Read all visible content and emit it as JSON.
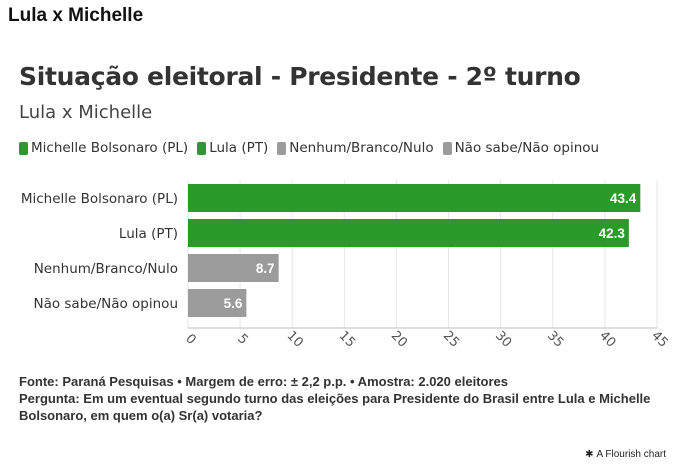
{
  "page_header": "Lula x Michelle",
  "flourish_credit": "A Flourish chart",
  "footer": {
    "source": "Fonte: Paraná Pesquisas • Margem de erro: ± 2,2 p.p. • Amostra: 2.020 eleitores",
    "question": "Pergunta: Em um eventual segundo turno das eleições para Presidente do Brasil entre Lula e Michelle Bolsonaro, em quem o(a) Sr(a) votaria?"
  },
  "legend": [
    {
      "label": "Michelle Bolsonaro (PL)",
      "color": "#2a9a2a"
    },
    {
      "label": "Lula (PT)",
      "color": "#2a9a2a"
    },
    {
      "label": "Nenhum/Branco/Nulo",
      "color": "#9b9b9b"
    },
    {
      "label": "Não sabe/Não opinou",
      "color": "#9b9b9b"
    }
  ],
  "chart_data": {
    "type": "bar",
    "orientation": "horizontal",
    "title": "Situação eleitoral - Presidente - 2º turno",
    "subtitle": "Lula x Michelle",
    "categories": [
      "Michelle Bolsonaro (PL)",
      "Lula (PT)",
      "Nenhum/Branco/Nulo",
      "Não sabe/Não opinou"
    ],
    "values": [
      43.4,
      42.3,
      8.7,
      5.6
    ],
    "value_labels": [
      "43.4",
      "42.3",
      "8.7",
      "5.6"
    ],
    "colors": [
      "#2a9a2a",
      "#2a9a2a",
      "#9b9b9b",
      "#9b9b9b"
    ],
    "xlim": [
      0,
      45
    ],
    "xticks": [
      "0",
      "5",
      "10",
      "15",
      "20",
      "25",
      "30",
      "35",
      "40",
      "45"
    ],
    "grid": true,
    "legend_position": "top"
  }
}
